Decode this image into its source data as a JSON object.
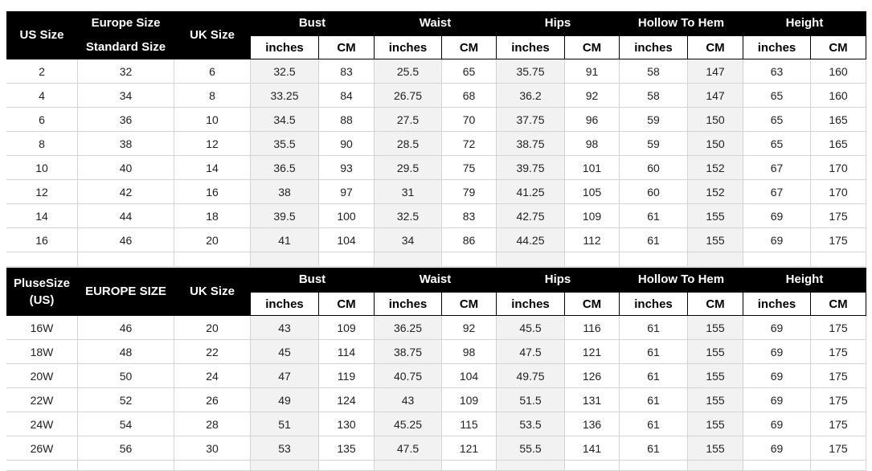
{
  "tables": [
    {
      "headers": [
        "US Size",
        "Europe Size",
        "UK Size"
      ],
      "subheader": "Standard Size",
      "groups": [
        "Bust",
        "Waist",
        "Hips",
        "Hollow To Hem",
        "Height"
      ],
      "units": [
        "inches",
        "CM",
        "inches",
        "CM",
        "inches",
        "CM",
        "inches",
        "CM",
        "inches",
        "CM"
      ],
      "rows": [
        [
          "2",
          "32",
          "6",
          "32.5",
          "83",
          "25.5",
          "65",
          "35.75",
          "91",
          "58",
          "147",
          "63",
          "160"
        ],
        [
          "4",
          "34",
          "8",
          "33.25",
          "84",
          "26.75",
          "68",
          "36.2",
          "92",
          "58",
          "147",
          "65",
          "160"
        ],
        [
          "6",
          "36",
          "10",
          "34.5",
          "88",
          "27.5",
          "70",
          "37.75",
          "96",
          "59",
          "150",
          "65",
          "165"
        ],
        [
          "8",
          "38",
          "12",
          "35.5",
          "90",
          "28.5",
          "72",
          "38.75",
          "98",
          "59",
          "150",
          "65",
          "165"
        ],
        [
          "10",
          "40",
          "14",
          "36.5",
          "93",
          "29.5",
          "75",
          "39.75",
          "101",
          "60",
          "152",
          "67",
          "170"
        ],
        [
          "12",
          "42",
          "16",
          "38",
          "97",
          "31",
          "79",
          "41.25",
          "105",
          "60",
          "152",
          "67",
          "170"
        ],
        [
          "14",
          "44",
          "18",
          "39.5",
          "100",
          "32.5",
          "83",
          "42.75",
          "109",
          "61",
          "155",
          "69",
          "175"
        ],
        [
          "16",
          "46",
          "20",
          "41",
          "104",
          "34",
          "86",
          "44.25",
          "112",
          "61",
          "155",
          "69",
          "175"
        ]
      ]
    },
    {
      "headers": [
        "PluseSize (US)",
        "EUROPE SIZE",
        "UK Size"
      ],
      "groups": [
        "Bust",
        "Waist",
        "Hips",
        "Hollow To Hem",
        "Height"
      ],
      "units": [
        "inches",
        "CM",
        "inches",
        "CM",
        "inches",
        "CM",
        "inches",
        "CM",
        "inches",
        "CM"
      ],
      "rows": [
        [
          "16W",
          "46",
          "20",
          "43",
          "109",
          "36.25",
          "92",
          "45.5",
          "116",
          "61",
          "155",
          "69",
          "175"
        ],
        [
          "18W",
          "48",
          "22",
          "45",
          "114",
          "38.75",
          "98",
          "47.5",
          "121",
          "61",
          "155",
          "69",
          "175"
        ],
        [
          "20W",
          "50",
          "24",
          "47",
          "119",
          "40.75",
          "104",
          "49.75",
          "126",
          "61",
          "155",
          "69",
          "175"
        ],
        [
          "22W",
          "52",
          "26",
          "49",
          "124",
          "43",
          "109",
          "51.5",
          "131",
          "61",
          "155",
          "69",
          "175"
        ],
        [
          "24W",
          "54",
          "28",
          "51",
          "130",
          "45.25",
          "115",
          "53.5",
          "136",
          "61",
          "155",
          "69",
          "175"
        ],
        [
          "26W",
          "56",
          "30",
          "53",
          "135",
          "47.5",
          "121",
          "55.5",
          "141",
          "61",
          "155",
          "69",
          "175"
        ]
      ]
    }
  ]
}
